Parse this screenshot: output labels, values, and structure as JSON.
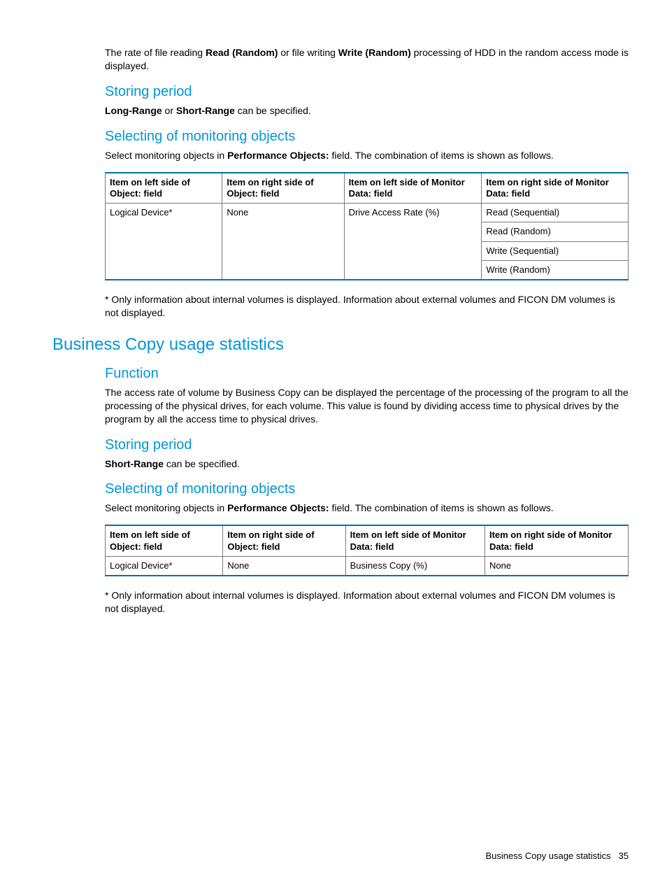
{
  "colors": {
    "heading_blue": "#0096d6",
    "table_border_blue": "#0073a8",
    "table_border_gray": "#7a7a7a",
    "text": "#000000",
    "background": "#ffffff"
  },
  "intro": {
    "pre1": "The rate of file reading ",
    "bold1": "Read (Random)",
    "mid1": " or file writing ",
    "bold2": "Write (Random)",
    "post1": " processing of HDD in the random access mode is displayed."
  },
  "sec1": {
    "storing_heading": "Storing period",
    "storing_b1": "Long-Range",
    "storing_mid": " or ",
    "storing_b2": "Short-Range",
    "storing_tail": " can be specified.",
    "selecting_heading": "Selecting of monitoring objects",
    "selecting_pre": "Select monitoring objects in ",
    "selecting_bold": "Performance Objects:",
    "selecting_post": " field. The combination of items is shown as follows.",
    "table": {
      "headers": [
        "Item on left side of Object: field",
        "Item on right side of Object: field",
        "Item on left side of Monitor Data: field",
        "Item on right side of Monitor Data: field"
      ],
      "col1": "Logical Device*",
      "col2": "None",
      "col3": "Drive Access Rate (%)",
      "col4": [
        "Read (Sequential)",
        "Read (Random)",
        "Write (Sequential)",
        "Write (Random)"
      ]
    },
    "footnote": "* Only information about internal volumes is displayed. Information about external volumes and FICON DM volumes is not displayed."
  },
  "bc": {
    "heading": "Business Copy usage statistics",
    "function_heading": "Function",
    "function_text": "The access rate of volume by Business Copy can be displayed the percentage of the processing of the program to all the processing of the physical drives, for each volume. This value is found by dividing access time to physical drives by the program by all the access time to physical drives.",
    "storing_heading": "Storing period",
    "storing_bold": "Short-Range",
    "storing_tail": " can be specified.",
    "selecting_heading": "Selecting of monitoring objects",
    "selecting_pre": "Select monitoring objects in ",
    "selecting_bold": "Performance Objects:",
    "selecting_post": " field. The combination of items is shown as follows.",
    "table": {
      "headers": [
        "Item on left side of Object: field",
        "Item on right side of Object: field",
        "Item on left side of Monitor Data: field",
        "Item on right side of Monitor Data: field"
      ],
      "row": [
        "Logical Device*",
        "None",
        "Business Copy (%)",
        "None"
      ]
    },
    "footnote": "* Only information about internal volumes is displayed. Information about external volumes and FICON DM volumes is not displayed."
  },
  "footer": {
    "text": "Business Copy usage statistics",
    "page": "35"
  }
}
